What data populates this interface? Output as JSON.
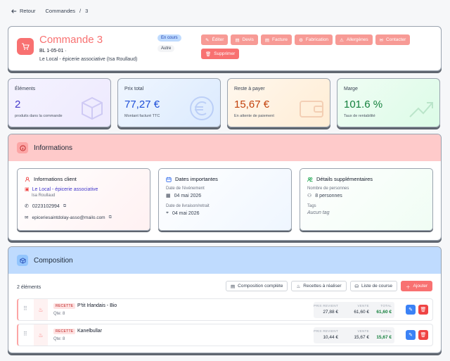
{
  "nav": {
    "back_label": "Retour",
    "crumb1": "Commandes",
    "sep": "/",
    "crumb2": "3"
  },
  "header": {
    "title": "Commande 3",
    "sub": "BL 1-05-01 ·",
    "client": "Le Local - épicerie associative (Isa Roullaud)",
    "badge_status": "En cours",
    "badge_type": "Autre",
    "actions": [
      "Éditer",
      "Devis",
      "Facture",
      "Fabrication",
      "Allergènes",
      "Contacter"
    ],
    "delete_label": "Supprimer"
  },
  "stats": [
    {
      "label": "Éléments",
      "value": "2",
      "note": "produits dans la commande",
      "color": "#4338ca"
    },
    {
      "label": "Prix total",
      "value": "77,27 €",
      "note": "Montant facturé TTC",
      "color": "#1d4ed8"
    },
    {
      "label": "Reste à payer",
      "value": "15,67 €",
      "note": "En attente de paiement",
      "color": "#c2410c"
    },
    {
      "label": "Marge",
      "value": "101.6 %",
      "note": "Taux de rentabilité",
      "color": "#15803d"
    }
  ],
  "info": {
    "title": "Informations",
    "client": {
      "title": "Informations client",
      "name": "Le Local - épicerie associative",
      "contact": "Isa Roullaud",
      "phone": "0223102994",
      "email": "epiceriesaintdolay-asso@mailo.com"
    },
    "dates": {
      "title": "Dates importantes",
      "event_label": "Date de l'événement",
      "event_value": "04 mai 2026",
      "delivery_label": "Date de livraison/retrait",
      "delivery_value": "04 mai 2026"
    },
    "extra": {
      "title": "Détails supplémentaires",
      "people_label": "Nombre de personnes",
      "people_value": "8 personnes",
      "tags_label": "Tags",
      "tags_value": "Aucun tag"
    }
  },
  "composition": {
    "title": "Composition",
    "count": "2 éléments",
    "btn_complete": "Composition complète",
    "btn_recettes": "Recettes à réaliser",
    "btn_liste": "Liste de course",
    "btn_add": "Ajouter",
    "col_revient": "PRIX REVIENT",
    "col_vente": "VENTE",
    "col_total": "TOTAL",
    "items": [
      {
        "tag": "RECETTE",
        "name": "P'tit Irlandais - Bio",
        "qty": "Qte: 8",
        "revient": "27,88 €",
        "vente": "61,60 €",
        "total": "61,60 €"
      },
      {
        "tag": "RECETTE",
        "name": "Kanelbullar",
        "qty": "Qte: 8",
        "revient": "10,44 €",
        "vente": "15,67 €",
        "total": "15,67 €"
      }
    ]
  }
}
